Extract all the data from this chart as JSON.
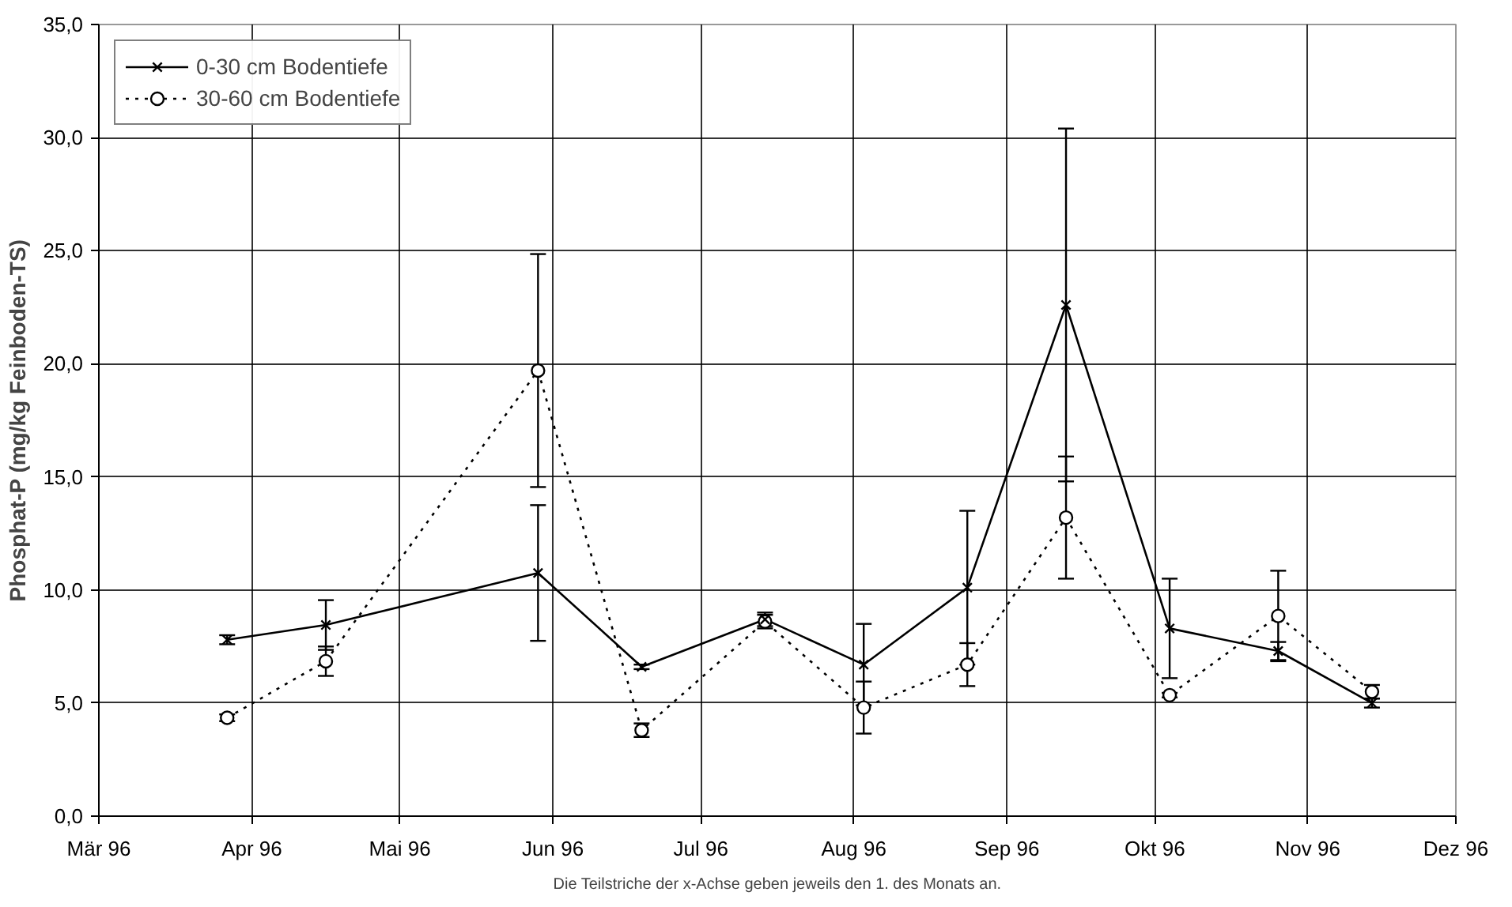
{
  "chart_data": {
    "type": "line",
    "ylabel": "Phosphat-P (mg/kg Feinboden-TS)",
    "annotations": [
      "Die Teilstriche der x-Achse geben jeweils den 1. des Monats an."
    ],
    "x": [
      "1996-03-27",
      "1996-04-16",
      "1996-05-29",
      "1996-06-19",
      "1996-07-14",
      "1996-08-03",
      "1996-08-24",
      "1996-09-13",
      "1996-10-04",
      "1996-10-26",
      "1996-11-14"
    ],
    "series": [
      {
        "name": "0-30 cm Bodentiefe",
        "color": "#000000",
        "marker": "cross",
        "line_style": "solid",
        "values": [
          7.8,
          8.45,
          10.75,
          6.6,
          8.7,
          6.7,
          10.1,
          22.6,
          8.3,
          7.3,
          5.0
        ],
        "errors": [
          0.2,
          1.1,
          3.0,
          0.1,
          0.3,
          1.8,
          3.4,
          7.8,
          2.2,
          0.4,
          0.2
        ]
      },
      {
        "name": "30-60 cm Bodentiefe",
        "color": "#000000",
        "marker": "circle",
        "line_style": "dotted",
        "values": [
          4.35,
          6.85,
          19.7,
          3.8,
          8.6,
          4.8,
          6.7,
          13.2,
          5.35,
          8.85,
          5.5
        ],
        "errors": [
          0.15,
          0.65,
          5.15,
          0.3,
          0.3,
          1.15,
          0.95,
          2.7,
          0.1,
          2.0,
          0.3
        ]
      }
    ],
    "xlim": [
      "1996-03-01",
      "1996-12-01"
    ],
    "xticks": [
      {
        "value": "1996-03-01",
        "label": "Mär 96"
      },
      {
        "value": "1996-04-01",
        "label": "Apr 96"
      },
      {
        "value": "1996-05-01",
        "label": "Mai 96"
      },
      {
        "value": "1996-06-01",
        "label": "Jun 96"
      },
      {
        "value": "1996-07-01",
        "label": "Jul 96"
      },
      {
        "value": "1996-08-01",
        "label": "Aug 96"
      },
      {
        "value": "1996-09-01",
        "label": "Sep 96"
      },
      {
        "value": "1996-10-01",
        "label": "Okt 96"
      },
      {
        "value": "1996-11-01",
        "label": "Nov 96"
      },
      {
        "value": "1996-12-01",
        "label": "Dez 96"
      }
    ],
    "ylim": [
      0,
      35
    ],
    "yticks": [
      {
        "value": 0,
        "label": "0,0"
      },
      {
        "value": 5,
        "label": "5,0"
      },
      {
        "value": 10,
        "label": "10,0"
      },
      {
        "value": 15,
        "label": "15,0"
      },
      {
        "value": 20,
        "label": "20,0"
      },
      {
        "value": 25,
        "label": "25,0"
      },
      {
        "value": 30,
        "label": "30,0"
      },
      {
        "value": 35,
        "label": "35,0"
      }
    ],
    "grid": true,
    "legend": "top left"
  }
}
